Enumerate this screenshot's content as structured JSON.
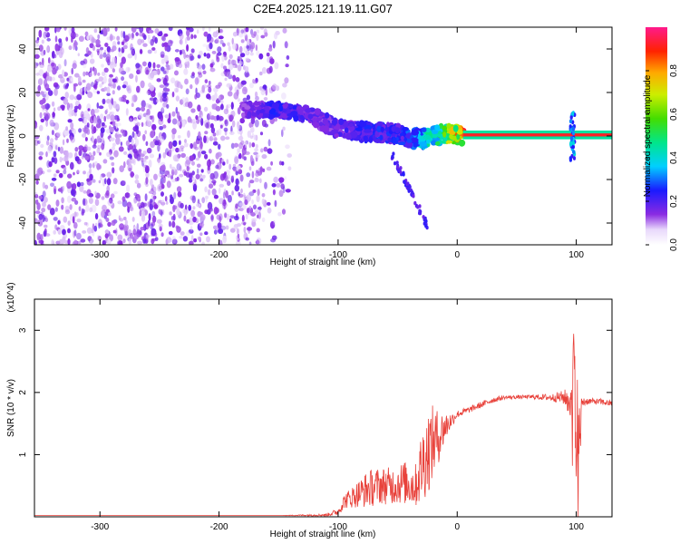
{
  "title": "C2E4.2025.121.19.11.G07",
  "chart_data": [
    {
      "type": "heatmap",
      "xlabel": "Height of straight line (km)",
      "ylabel": "Frequency (Hz)",
      "xlim": [
        -355,
        130
      ],
      "ylim": [
        -50,
        50
      ],
      "xticks": [
        "-300",
        "-200",
        "-100",
        "0",
        "100"
      ],
      "xtick_values": [
        -300,
        -200,
        -100,
        0,
        100
      ],
      "yticks": [
        "-40",
        "-20",
        "0",
        "20",
        "40"
      ],
      "ytick_values": [
        -40,
        -20,
        0,
        20,
        40
      ],
      "colorbar": {
        "label": "Normalized spectral amplitude",
        "range": [
          0,
          1
        ],
        "ticks": [
          "0.0",
          "0.2",
          "0.4",
          "0.6",
          "0.8"
        ],
        "tick_values": [
          0,
          0.2,
          0.4,
          0.6,
          0.8
        ],
        "colormap": "rainbow (white-violet-blue-cyan-green-yellow-red-magenta)"
      },
      "features": {
        "noise_region_x": [
          -355,
          -180
        ],
        "doppler_track": {
          "x": [
            -180,
            -150,
            -125,
            -100,
            -75,
            -50,
            -40,
            -25,
            -10,
            5,
            50,
            90,
            100,
            130
          ],
          "y_center": [
            12,
            12,
            10,
            3,
            2,
            1,
            -1,
            -1,
            1,
            0.5,
            0.5,
            0.5,
            0,
            0.5
          ],
          "amplitude": [
            0.15,
            0.25,
            0.2,
            0.2,
            0.25,
            0.25,
            0.3,
            0.45,
            0.6,
            0.9,
            0.95,
            0.95,
            0.5,
            0.95
          ]
        }
      },
      "grid": false
    },
    {
      "type": "line",
      "xlabel": "Height of straight line (km)",
      "ylabel": "SNR (10 * v/v)",
      "y_multiplier": "(x10^4)",
      "xlim": [
        -355,
        130
      ],
      "ylim": [
        0,
        3.5
      ],
      "xticks": [
        "-300",
        "-200",
        "-100",
        "0",
        "100"
      ],
      "xtick_values": [
        -300,
        -200,
        -100,
        0,
        100
      ],
      "yticks": [
        "1",
        "2",
        "3"
      ],
      "ytick_values": [
        1,
        2,
        3
      ],
      "line_color": "#e8413a",
      "series": [
        {
          "x": [
            -355,
            -300,
            -250,
            -200,
            -150,
            -110,
            -100,
            -95,
            -85,
            -75,
            -65,
            -55,
            -45,
            -35,
            -30,
            -25,
            -20,
            -15,
            -10,
            -5,
            0,
            10,
            20,
            30,
            40,
            60,
            80,
            90,
            95,
            100,
            105,
            110,
            120,
            130
          ],
          "y": [
            0.02,
            0.02,
            0.02,
            0.02,
            0.02,
            0.03,
            0.08,
            0.25,
            0.35,
            0.45,
            0.5,
            0.5,
            0.55,
            0.5,
            0.8,
            1.05,
            1.2,
            1.3,
            1.45,
            1.55,
            1.65,
            1.72,
            1.8,
            1.88,
            1.92,
            1.93,
            1.92,
            1.92,
            1.85,
            0.3,
            1.85,
            1.86,
            1.85,
            1.82
          ],
          "spread": [
            0,
            0,
            0,
            0,
            0,
            0.02,
            0.06,
            0.12,
            0.2,
            0.3,
            0.3,
            0.3,
            0.35,
            0.35,
            0.6,
            0.7,
            0.6,
            0.4,
            0.25,
            0.12,
            0.06,
            0.05,
            0.05,
            0.05,
            0.03,
            0.03,
            0.06,
            0.12,
            0.3,
            1.6,
            0.1,
            0.05,
            0.05,
            0.05
          ]
        }
      ],
      "grid": false
    }
  ]
}
